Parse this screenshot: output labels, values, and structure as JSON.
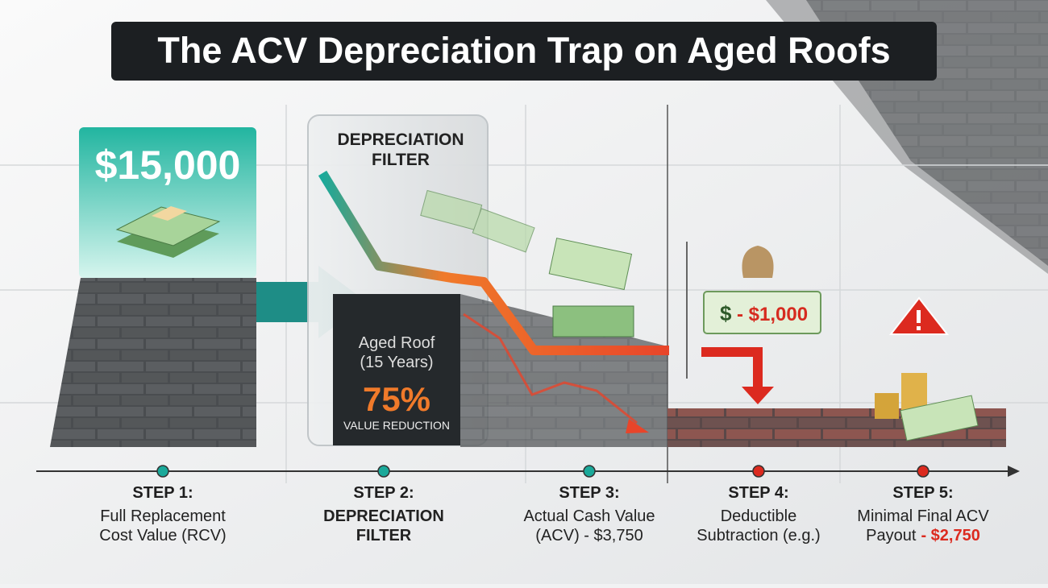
{
  "title": "The ACV Depreciation Trap on Aged Roofs",
  "rcv_card": {
    "amount": "$15,000"
  },
  "filter": {
    "title_lines": [
      "DEPRECIATION",
      "FILTER"
    ],
    "roof_lines": [
      "Aged Roof",
      "(15 Years)"
    ],
    "percent": "75%",
    "caption": "VALUE REDUCTION"
  },
  "deductible": {
    "symbol": "$",
    "amount": "- $1,000"
  },
  "steps": [
    {
      "label": "STEP 1:",
      "lines": [
        "Full Replacement",
        "Cost Value (RCV)"
      ]
    },
    {
      "label": "STEP 2:",
      "lines": [
        "DEPRECIATION",
        "FILTER"
      ]
    },
    {
      "label": "STEP 3:",
      "lines": [
        "Actual Cash Value",
        "(ACV) - $3,750"
      ]
    },
    {
      "label": "STEP 4:",
      "lines": [
        "Deductible",
        "Subtraction (e.g.)"
      ]
    },
    {
      "label": "STEP 5:",
      "lines": [
        "Minimal Final ACV",
        "Payout"
      ],
      "highlight": "- $2,750"
    }
  ]
}
